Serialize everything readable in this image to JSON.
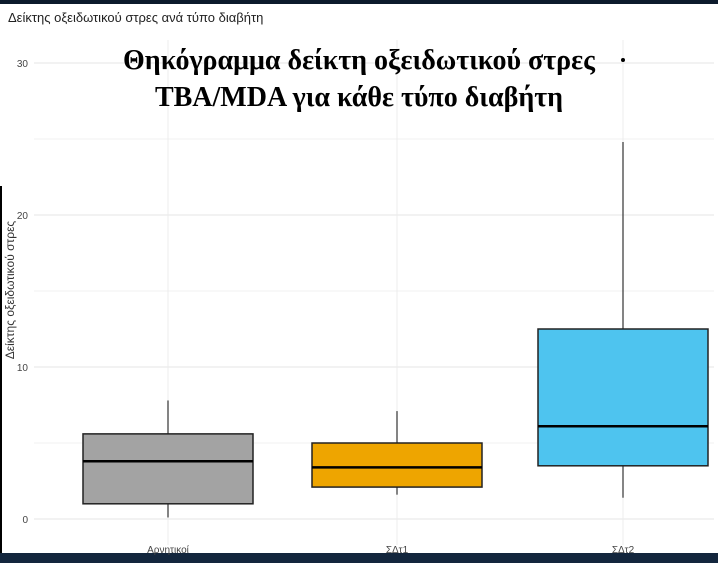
{
  "subtitle": "Δείκτης οξειδωτικού στρες ανά τύπο διαβήτη",
  "title": "Θηκόγραμμα δείκτη οξειδωτικού στρες TBA/MDA για κάθε τύπο διαβήτη",
  "colors": {
    "Αρνητικοί": "#a3a3a3",
    "ΣΔτ1": "#eea500",
    "ΣΔτ2": "#4ec4ef"
  },
  "chart_data": {
    "type": "box",
    "title": "Δείκτης οξειδωτικού στρες ανά τύπο διαβήτη",
    "xlabel": "",
    "ylabel": "Δείκτης οξειδωτικού στρες",
    "ylim": [
      0,
      30
    ],
    "yticks": [
      0,
      10,
      20,
      30
    ],
    "grid": true,
    "legend": "none",
    "categories": [
      "Αρνητικοί",
      "ΣΔτ1",
      "ΣΔτ2"
    ],
    "boxes": [
      {
        "min": 0.1,
        "q1": 1.0,
        "median": 3.8,
        "q3": 5.6,
        "max": 7.8
      },
      {
        "min": 1.6,
        "q1": 2.1,
        "median": 3.4,
        "q3": 5.0,
        "max": 7.1
      },
      {
        "min": 1.4,
        "q1": 3.5,
        "median": 6.1,
        "q3": 12.5,
        "max": 24.8
      }
    ]
  }
}
